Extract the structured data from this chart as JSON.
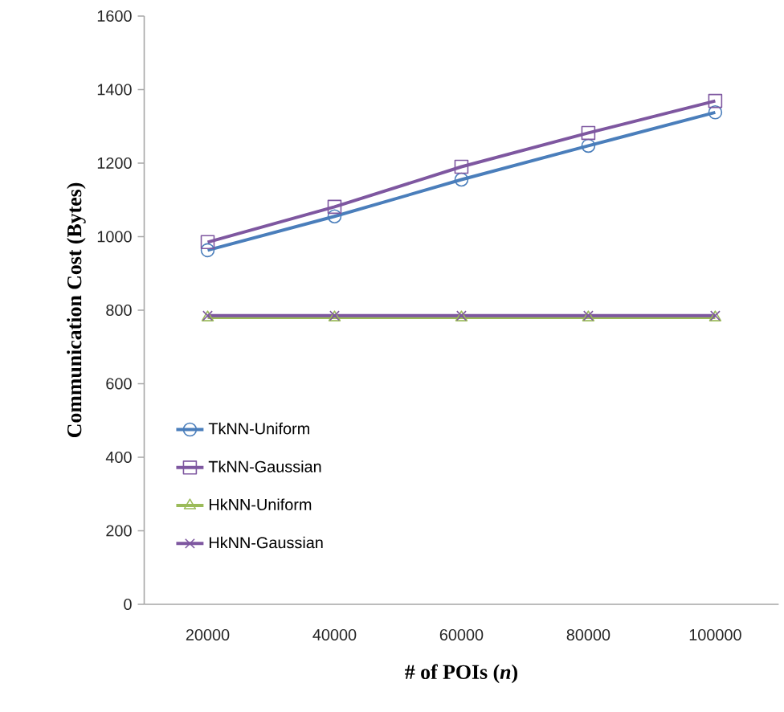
{
  "chart_data": {
    "type": "line",
    "xlabel": "# of POIs (*n*)",
    "ylabel": "Communication Cost (Bytes)",
    "categories": [
      "20000",
      "40000",
      "60000",
      "80000",
      "100000"
    ],
    "series": [
      {
        "name": "TkNN-Uniform",
        "color": "#4a7ebb",
        "marker": "circle",
        "values": [
          963,
          1055,
          1155,
          1247,
          1338
        ]
      },
      {
        "name": "TkNN-Gaussian",
        "color": "#7e57a0",
        "marker": "square",
        "values": [
          985,
          1081,
          1190,
          1282,
          1369
        ]
      },
      {
        "name": "HkNN-Uniform",
        "color": "#9bbb59",
        "marker": "triangle",
        "values": [
          780,
          780,
          780,
          780,
          780
        ]
      },
      {
        "name": "HkNN-Gaussian",
        "color": "#7e57a0",
        "marker": "cross",
        "values": [
          785,
          785,
          785,
          785,
          785
        ]
      }
    ],
    "ylim": [
      0,
      1600
    ],
    "yticks": [
      0,
      200,
      400,
      600,
      800,
      1000,
      1200,
      1400,
      1600
    ],
    "grid": false,
    "legend": "bottom left",
    "line_style": "solid"
  }
}
